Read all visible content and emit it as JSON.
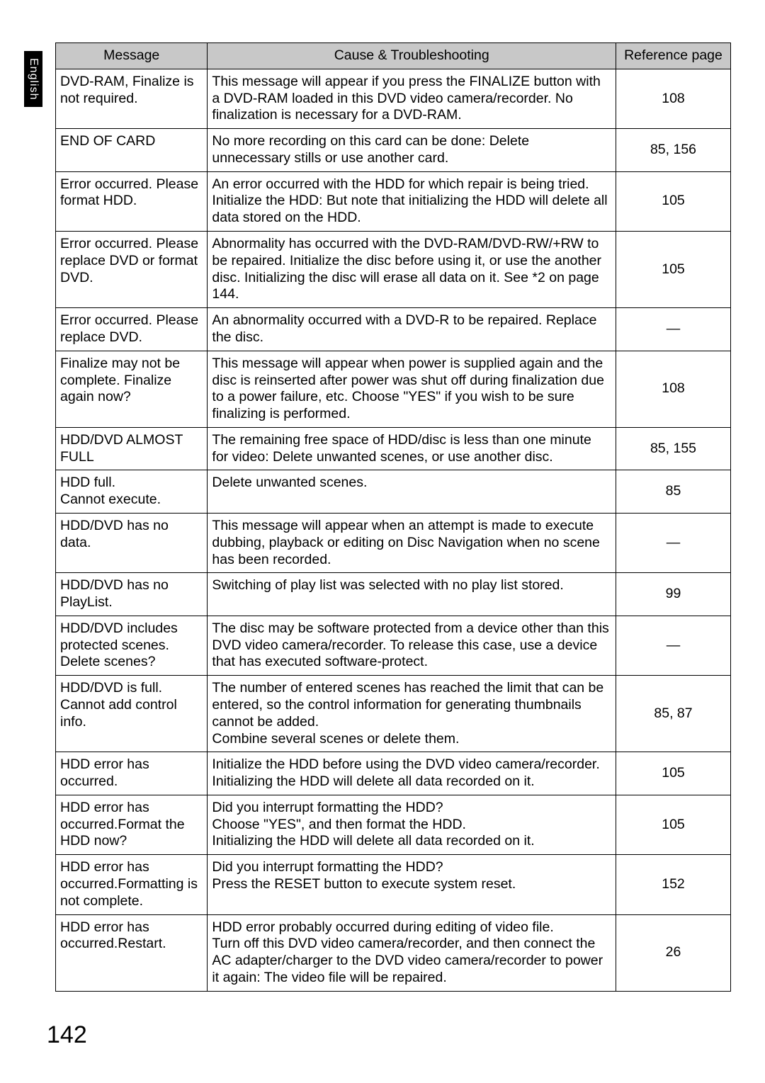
{
  "language_tab": "English",
  "page_number": "142",
  "table": {
    "headers": {
      "message": "Message",
      "cause": "Cause & Troubleshooting",
      "reference": "Reference page"
    },
    "header_bg": "#c8c8c8",
    "border_color": "#000000",
    "rows": [
      {
        "message": "DVD-RAM, Finalize is not required.",
        "cause": "This message will appear if you press the FINALIZE button with a DVD-RAM loaded in this DVD video camera/recorder. No finalization is necessary for a DVD-RAM.",
        "reference": "108"
      },
      {
        "message": "END OF CARD",
        "cause": "No more recording on this card can be done: Delete unnecessary stills or use another card.",
        "reference": "85, 156"
      },
      {
        "message": "Error occurred. Please format HDD.",
        "cause": "An error occurred with the HDD for which repair is being tried. Initialize the HDD: But note that initializing the HDD will delete all data stored on the HDD.",
        "reference": "105"
      },
      {
        "message": "Error occurred. Please replace DVD or format DVD.",
        "cause": "Abnormality has occurred with the DVD-RAM/DVD-RW/+RW to be repaired. Initialize the disc before using it, or use the another disc. Initializing the disc will erase all data on it. See *2 on page 144.",
        "reference": "105"
      },
      {
        "message": "Error occurred. Please replace DVD.",
        "cause": "An abnormality occurred with a DVD-R to be repaired. Replace the disc.",
        "reference": "—"
      },
      {
        "message": "Finalize may not be complete. Finalize again now?",
        "cause": "This message will appear when power is supplied again and the disc is reinserted after power was shut off during finalization due to a power failure, etc. Choose \"YES\" if you wish to be sure finalizing is performed.",
        "reference": "108"
      },
      {
        "message": "HDD/DVD ALMOST FULL",
        "cause": "The remaining free space of HDD/disc is less than one minute for video: Delete unwanted scenes, or use another disc.",
        "reference": "85, 155"
      },
      {
        "message": "HDD full.\nCannot execute.",
        "cause": "Delete unwanted scenes.",
        "reference": "85"
      },
      {
        "message": "HDD/DVD has no data.",
        "cause": "This message will appear when an attempt is made to execute dubbing, playback or editing on Disc Navigation when no scene has been recorded.",
        "reference": "—"
      },
      {
        "message": "HDD/DVD has no PlayList.",
        "cause": "Switching of play list was selected with no play list stored.",
        "reference": "99"
      },
      {
        "message": "HDD/DVD includes protected scenes. Delete scenes?",
        "cause": "The disc may be software protected from a device other than this DVD video camera/recorder. To release this case, use a device that has executed software-protect.",
        "reference": "—"
      },
      {
        "message": "HDD/DVD is full. Cannot add control info.",
        "cause": "The number of entered scenes has reached the limit that can be entered, so the control information for generating thumbnails cannot be added.\nCombine several scenes or delete them.",
        "reference": "85, 87"
      },
      {
        "message": "HDD error has occurred.",
        "cause": "Initialize the HDD before using the DVD video camera/recorder. Initializing the HDD will delete all data recorded on it.",
        "reference": "105"
      },
      {
        "message": "HDD error has occurred.Format the HDD now?",
        "cause": "Did you interrupt formatting the HDD?\nChoose \"YES\", and then format the HDD.\nInitializing the HDD will delete all data recorded on it.",
        "reference": "105"
      },
      {
        "message": "HDD error has occurred.Formatting is not complete.",
        "cause": "Did you interrupt formatting the HDD?\nPress the RESET button to execute system reset.",
        "reference": "152"
      },
      {
        "message": "HDD error has occurred.Restart.",
        "cause": "HDD error probably occurred during editing of video file.\nTurn off this DVD video camera/recorder, and then connect the AC adapter/charger to the DVD video camera/recorder to power it again: The video file will be repaired.",
        "reference": "26"
      }
    ]
  }
}
